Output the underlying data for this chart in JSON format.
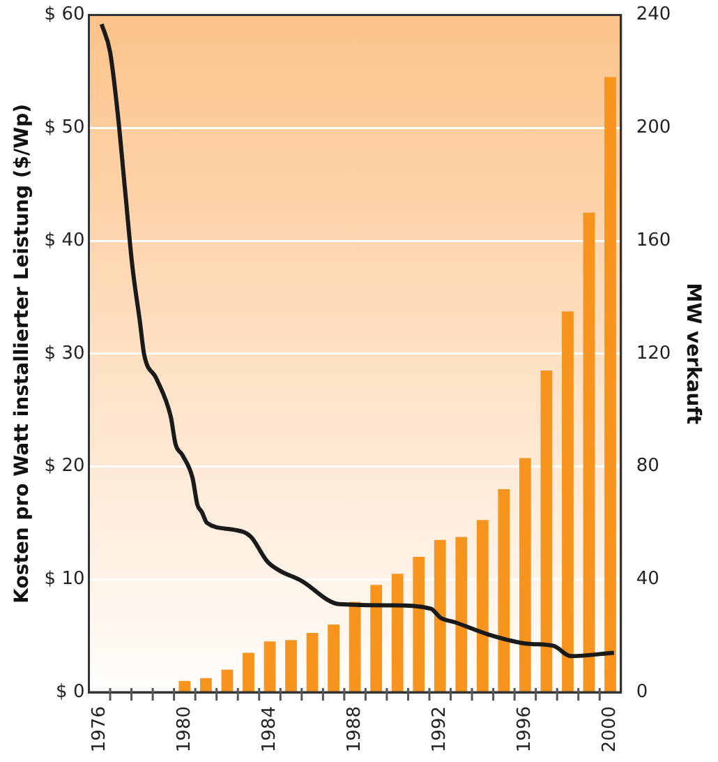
{
  "chart_data": {
    "type": "bar",
    "ylabel": "Kosten pro Watt installierter Leistung ($/Wp)",
    "y2label": "MW verkauft",
    "xlim": [
      1975.5,
      2000.5
    ],
    "xticks": [
      {
        "value": 1976,
        "label": "1976"
      },
      {
        "value": 1980,
        "label": "1980"
      },
      {
        "value": 1984,
        "label": "1984"
      },
      {
        "value": 1988,
        "label": "1988"
      },
      {
        "value": 1992,
        "label": "1992"
      },
      {
        "value": 1996,
        "label": "1996"
      },
      {
        "value": 2000,
        "label": "2000"
      },
      {
        "value": 1976.5,
        "label": null
      },
      {
        "value": 1977.5,
        "label": null
      },
      {
        "value": 1978.5,
        "label": null
      },
      {
        "value": 1979.5,
        "label": null
      },
      {
        "value": 1980.5,
        "label": null
      },
      {
        "value": 1981.5,
        "label": null
      },
      {
        "value": 1982.5,
        "label": null
      },
      {
        "value": 1983.5,
        "label": null
      },
      {
        "value": 1984.5,
        "label": null
      },
      {
        "value": 1985.5,
        "label": null
      },
      {
        "value": 1986.5,
        "label": null
      },
      {
        "value": 1987.5,
        "label": null
      },
      {
        "value": 1988.5,
        "label": null
      },
      {
        "value": 1989.5,
        "label": null
      },
      {
        "value": 1990.5,
        "label": null
      },
      {
        "value": 1991.5,
        "label": null
      },
      {
        "value": 1992.5,
        "label": null
      },
      {
        "value": 1993.5,
        "label": null
      },
      {
        "value": 1994.5,
        "label": null
      },
      {
        "value": 1995.5,
        "label": null
      },
      {
        "value": 1996.5,
        "label": null
      },
      {
        "value": 1997.5,
        "label": null
      },
      {
        "value": 1998.5,
        "label": null
      },
      {
        "value": 1999.5,
        "label": null
      }
    ],
    "ylim": [
      0,
      60
    ],
    "yticks": [
      {
        "value": 0,
        "label": "$ 0"
      },
      {
        "value": 10,
        "label": "$ 10"
      },
      {
        "value": 20,
        "label": "$ 20"
      },
      {
        "value": 30,
        "label": "$ 30"
      },
      {
        "value": 40,
        "label": "$ 40"
      },
      {
        "value": 50,
        "label": "$ 50"
      },
      {
        "value": 60,
        "label": "$ 60"
      }
    ],
    "y2lim": [
      0,
      240
    ],
    "y2ticks": [
      0,
      40,
      80,
      120,
      160,
      200,
      240
    ],
    "grid": "y",
    "series": [
      {
        "axis": "y2",
        "color": "#f7941d",
        "x": [
          1980,
          1981,
          1982,
          1983,
          1984,
          1985,
          1986,
          1987,
          1988,
          1989,
          1990,
          1991,
          1992,
          1993,
          1994,
          1995,
          1996,
          1997,
          1998,
          1999,
          2000
        ],
        "values": [
          4,
          5,
          8,
          14,
          18,
          18.5,
          21,
          24,
          32,
          38,
          42,
          48,
          54,
          55,
          61,
          72,
          83,
          114,
          135,
          170,
          218
        ]
      },
      {
        "type": "line",
        "color": "#1a1a1a",
        "x": [
          1976.1,
          1976.5,
          1976.86,
          1977.2,
          1977.54,
          1977.9,
          1978.1,
          1978.67,
          1979.35,
          1979.57,
          1979.9,
          1980.37,
          1980.6,
          1980.8,
          1981.05,
          1982.3,
          1983.1,
          1983.88,
          1984.44,
          1985.46,
          1987.27,
          1989.76,
          1991.57,
          1992.02,
          1992.7,
          1994.3,
          1996.1,
          1997.34,
          1998.14,
          2000.17
        ],
        "values": [
          59.2,
          56.7,
          51.2,
          44.5,
          37.8,
          32.8,
          29.9,
          27.8,
          24.4,
          22,
          21,
          19,
          16.6,
          16,
          15,
          14.4,
          13.8,
          11.6,
          10.8,
          9.9,
          7.8,
          7.7,
          7.4,
          6.6,
          6.2,
          5.1,
          4.3,
          4.1,
          3.2,
          3.5
        ]
      }
    ]
  }
}
